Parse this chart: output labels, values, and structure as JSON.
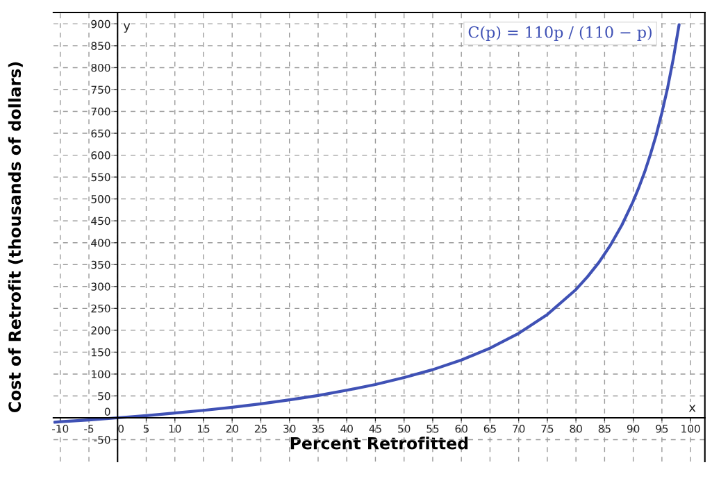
{
  "chart_data": {
    "type": "line",
    "xlabel": "Percent Retrofitted",
    "ylabel": "Cost of Retrofit (thousands of dollars)",
    "annotations": [
      "C(p) = 110p / (110 − p)",
      "x",
      "y"
    ],
    "series": [
      {
        "color": "#3f51b5",
        "x": [
          -11,
          -10,
          -5,
          0,
          5,
          10,
          15,
          20,
          25,
          30,
          35,
          40,
          45,
          50,
          55,
          60,
          65,
          70,
          75,
          80,
          82,
          84,
          86,
          88,
          90,
          91,
          92,
          93,
          94,
          95,
          96,
          97,
          98
        ],
        "values": [
          -10,
          -9,
          -5,
          0,
          5,
          11,
          17,
          24,
          32,
          41,
          51,
          63,
          76,
          92,
          110,
          132,
          159,
          193,
          236,
          293,
          322,
          355,
          394,
          440,
          495,
          527,
          562,
          602,
          646,
          697,
          754,
          821,
          898
        ]
      }
    ],
    "xlim": [
      -11.2,
      102.5
    ],
    "ylim": [
      -100,
      926
    ],
    "xticks": [
      -10,
      -5,
      0,
      5,
      10,
      15,
      20,
      25,
      30,
      35,
      40,
      45,
      50,
      55,
      60,
      65,
      70,
      75,
      80,
      85,
      90,
      95,
      100
    ],
    "yticks": [
      -50,
      0,
      50,
      100,
      150,
      200,
      250,
      300,
      350,
      400,
      450,
      500,
      550,
      600,
      650,
      700,
      750,
      800,
      850,
      900
    ],
    "grid": true,
    "marker": "none",
    "line_style": "solid"
  }
}
